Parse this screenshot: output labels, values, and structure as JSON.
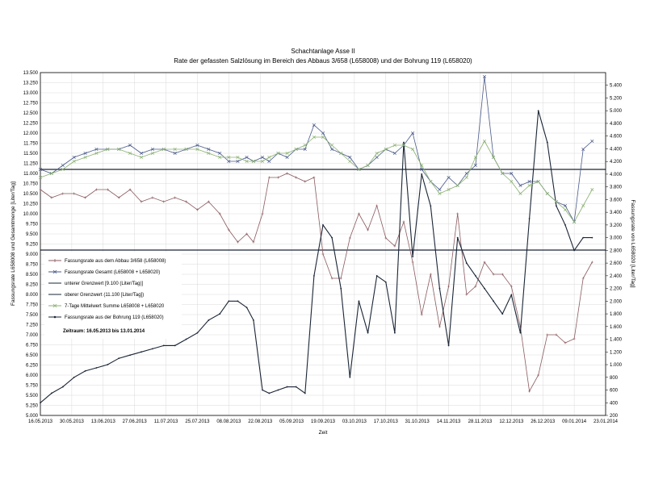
{
  "chart_data": {
    "type": "line",
    "title": "Schachtanlage Asse II",
    "subtitle": "Rate der gefassten Salzlösung im Bereich des Abbaus 3/658 (L658008) und der Bohrung 119 (L658020)",
    "xlabel": "Zeit",
    "ylabel_left": "Fassungsrate L658008 und Gesamtmenge  [Liter/Tag]",
    "ylabel_right": "Fassungsrate von L658020  [Liter/Tag]",
    "ylim_left": [
      5.0,
      13.5
    ],
    "ylim_right": [
      200,
      5600
    ],
    "xlim": [
      "16.05.2013",
      "23.01.2014"
    ],
    "left_ticks": [
      "5.000",
      "5.250",
      "5.500",
      "5.750",
      "6.000",
      "6.250",
      "6.500",
      "6.750",
      "7.000",
      "7.250",
      "7.500",
      "7.750",
      "8.000",
      "8.250",
      "8.500",
      "8.750",
      "9.000",
      "9.250",
      "9.500",
      "9.750",
      "10.000",
      "10.250",
      "10.500",
      "10.750",
      "11.000",
      "11.250",
      "11.500",
      "11.750",
      "12.000",
      "12.250",
      "12.500",
      "12.750",
      "13.000",
      "13.250",
      "13.500"
    ],
    "right_ticks": [
      "200",
      "400",
      "600",
      "800",
      "1.000",
      "1.200",
      "1.400",
      "1.600",
      "1.800",
      "2.000",
      "2.200",
      "2.400",
      "2.600",
      "2.800",
      "3.000",
      "3.200",
      "3.400",
      "3.600",
      "3.800",
      "4.000",
      "4.200",
      "4.400",
      "4.600",
      "4.800",
      "5.000",
      "5.200",
      "5.400"
    ],
    "x_ticks": [
      "16.05.2013",
      "30.05.2013",
      "13.06.2013",
      "27.06.2013",
      "11.07.2013",
      "25.07.2013",
      "08.08.2013",
      "22.08.2013",
      "05.09.2013",
      "19.09.2013",
      "03.10.2013",
      "17.10.2013",
      "31.10.2013",
      "14.11.2013",
      "28.11.2013",
      "12.12.2013",
      "26.12.2013",
      "09.01.2014",
      "23.01.2014"
    ],
    "x_tick_days": [
      0,
      14,
      28,
      42,
      56,
      70,
      84,
      98,
      112,
      126,
      140,
      154,
      168,
      182,
      196,
      210,
      224,
      238,
      252
    ],
    "grid": true,
    "legend_position": "bottom-left",
    "period_text": "Zeitraum: 16.05.2013 bis  13.01.2014",
    "thresholds": [
      {
        "name": "unterer Grenzwert [9.100 (Liter/Tag)]",
        "value": 9.1
      },
      {
        "name": "oberer Grenzwert (11.100 [Liter/Tag])",
        "value": 11.1
      }
    ],
    "series": [
      {
        "name": "Fassungsrate aus dem Abbau 3/658 (L658008)",
        "axis": "left",
        "color": "#8b5a5f",
        "marker": "plus",
        "points": [
          [
            0,
            10.6
          ],
          [
            5,
            10.4
          ],
          [
            10,
            10.5
          ],
          [
            15,
            10.5
          ],
          [
            20,
            10.4
          ],
          [
            25,
            10.6
          ],
          [
            30,
            10.6
          ],
          [
            35,
            10.4
          ],
          [
            40,
            10.6
          ],
          [
            45,
            10.3
          ],
          [
            50,
            10.4
          ],
          [
            55,
            10.3
          ],
          [
            60,
            10.4
          ],
          [
            65,
            10.3
          ],
          [
            70,
            10.1
          ],
          [
            75,
            10.3
          ],
          [
            80,
            10.0
          ],
          [
            84,
            9.6
          ],
          [
            88,
            9.3
          ],
          [
            92,
            9.5
          ],
          [
            95,
            9.3
          ],
          [
            99,
            10.0
          ],
          [
            102,
            10.9
          ],
          [
            106,
            10.9
          ],
          [
            110,
            11.0
          ],
          [
            114,
            10.9
          ],
          [
            118,
            10.8
          ],
          [
            122,
            10.9
          ],
          [
            126,
            9.0
          ],
          [
            130,
            8.4
          ],
          [
            134,
            8.4
          ],
          [
            138,
            9.4
          ],
          [
            142,
            10.0
          ],
          [
            146,
            9.6
          ],
          [
            150,
            10.2
          ],
          [
            154,
            9.4
          ],
          [
            158,
            9.2
          ],
          [
            162,
            9.8
          ],
          [
            166,
            8.8
          ],
          [
            170,
            7.5
          ],
          [
            174,
            8.5
          ],
          [
            178,
            7.2
          ],
          [
            182,
            8.2
          ],
          [
            186,
            10.0
          ],
          [
            190,
            8.0
          ],
          [
            194,
            8.2
          ],
          [
            198,
            8.8
          ],
          [
            202,
            8.5
          ],
          [
            206,
            8.5
          ],
          [
            210,
            8.2
          ],
          [
            214,
            7.2
          ],
          [
            218,
            5.6
          ],
          [
            222,
            6.0
          ],
          [
            226,
            7.0
          ],
          [
            230,
            7.0
          ],
          [
            234,
            6.8
          ],
          [
            238,
            6.9
          ],
          [
            242,
            8.4
          ],
          [
            246,
            8.8
          ]
        ]
      },
      {
        "name": "Fassungsrate Gesamt (L658008 + L658020)",
        "axis": "left",
        "color": "#4a5a8a",
        "marker": "x",
        "points": [
          [
            0,
            11.1
          ],
          [
            5,
            11.0
          ],
          [
            10,
            11.2
          ],
          [
            15,
            11.4
          ],
          [
            20,
            11.5
          ],
          [
            25,
            11.6
          ],
          [
            30,
            11.6
          ],
          [
            35,
            11.6
          ],
          [
            40,
            11.7
          ],
          [
            45,
            11.5
          ],
          [
            50,
            11.6
          ],
          [
            55,
            11.6
          ],
          [
            60,
            11.5
          ],
          [
            65,
            11.6
          ],
          [
            70,
            11.7
          ],
          [
            75,
            11.6
          ],
          [
            80,
            11.5
          ],
          [
            84,
            11.3
          ],
          [
            88,
            11.3
          ],
          [
            92,
            11.4
          ],
          [
            95,
            11.3
          ],
          [
            99,
            11.4
          ],
          [
            102,
            11.3
          ],
          [
            106,
            11.5
          ],
          [
            110,
            11.4
          ],
          [
            114,
            11.6
          ],
          [
            118,
            11.6
          ],
          [
            122,
            12.2
          ],
          [
            126,
            12.0
          ],
          [
            130,
            11.6
          ],
          [
            134,
            11.5
          ],
          [
            138,
            11.4
          ],
          [
            142,
            11.1
          ],
          [
            146,
            11.2
          ],
          [
            150,
            11.4
          ],
          [
            154,
            11.6
          ],
          [
            158,
            11.5
          ],
          [
            162,
            11.7
          ],
          [
            166,
            12.0
          ],
          [
            170,
            11.1
          ],
          [
            174,
            10.8
          ],
          [
            178,
            10.6
          ],
          [
            182,
            10.9
          ],
          [
            186,
            10.7
          ],
          [
            190,
            11.0
          ],
          [
            194,
            11.2
          ],
          [
            198,
            13.4
          ],
          [
            202,
            11.4
          ],
          [
            206,
            11.0
          ],
          [
            210,
            11.0
          ],
          [
            214,
            10.7
          ],
          [
            218,
            10.8
          ],
          [
            222,
            10.8
          ],
          [
            226,
            10.5
          ],
          [
            230,
            10.3
          ],
          [
            234,
            10.2
          ],
          [
            238,
            9.8
          ],
          [
            242,
            11.6
          ],
          [
            246,
            11.8
          ]
        ]
      },
      {
        "name": "7-Tage Mittelwert Summe L658008 + L658020",
        "axis": "left",
        "color": "#8ab070",
        "marker": "x",
        "points": [
          [
            0,
            10.9
          ],
          [
            5,
            11.0
          ],
          [
            10,
            11.1
          ],
          [
            15,
            11.3
          ],
          [
            20,
            11.4
          ],
          [
            25,
            11.5
          ],
          [
            30,
            11.6
          ],
          [
            35,
            11.6
          ],
          [
            40,
            11.5
          ],
          [
            45,
            11.4
          ],
          [
            50,
            11.5
          ],
          [
            55,
            11.6
          ],
          [
            60,
            11.6
          ],
          [
            65,
            11.6
          ],
          [
            70,
            11.6
          ],
          [
            75,
            11.5
          ],
          [
            80,
            11.4
          ],
          [
            84,
            11.4
          ],
          [
            88,
            11.4
          ],
          [
            92,
            11.3
          ],
          [
            95,
            11.3
          ],
          [
            99,
            11.3
          ],
          [
            102,
            11.4
          ],
          [
            106,
            11.5
          ],
          [
            110,
            11.5
          ],
          [
            114,
            11.6
          ],
          [
            118,
            11.7
          ],
          [
            122,
            11.9
          ],
          [
            126,
            11.9
          ],
          [
            130,
            11.7
          ],
          [
            134,
            11.5
          ],
          [
            138,
            11.3
          ],
          [
            142,
            11.1
          ],
          [
            146,
            11.2
          ],
          [
            150,
            11.5
          ],
          [
            154,
            11.6
          ],
          [
            158,
            11.7
          ],
          [
            162,
            11.7
          ],
          [
            166,
            11.6
          ],
          [
            170,
            11.2
          ],
          [
            174,
            10.8
          ],
          [
            178,
            10.5
          ],
          [
            182,
            10.6
          ],
          [
            186,
            10.7
          ],
          [
            190,
            10.9
          ],
          [
            194,
            11.4
          ],
          [
            198,
            11.8
          ],
          [
            202,
            11.4
          ],
          [
            206,
            11.0
          ],
          [
            210,
            10.8
          ],
          [
            214,
            10.5
          ],
          [
            218,
            10.7
          ],
          [
            222,
            10.8
          ],
          [
            226,
            10.5
          ],
          [
            230,
            10.3
          ],
          [
            234,
            10.1
          ],
          [
            238,
            9.8
          ],
          [
            242,
            10.2
          ],
          [
            246,
            10.6
          ]
        ]
      },
      {
        "name": "Fassungsrate aus der Bohrung 119 (L658020)",
        "axis": "right",
        "color": "#1a2535",
        "marker": "dot",
        "points": [
          [
            0,
            400
          ],
          [
            5,
            550
          ],
          [
            10,
            650
          ],
          [
            15,
            800
          ],
          [
            20,
            900
          ],
          [
            25,
            950
          ],
          [
            30,
            1000
          ],
          [
            35,
            1100
          ],
          [
            40,
            1150
          ],
          [
            45,
            1200
          ],
          [
            50,
            1250
          ],
          [
            55,
            1300
          ],
          [
            60,
            1300
          ],
          [
            65,
            1400
          ],
          [
            70,
            1500
          ],
          [
            75,
            1700
          ],
          [
            80,
            1800
          ],
          [
            84,
            2000
          ],
          [
            88,
            2000
          ],
          [
            92,
            1900
          ],
          [
            95,
            1700
          ],
          [
            99,
            600
          ],
          [
            102,
            550
          ],
          [
            106,
            600
          ],
          [
            110,
            650
          ],
          [
            114,
            650
          ],
          [
            118,
            550
          ],
          [
            122,
            2400
          ],
          [
            126,
            3200
          ],
          [
            130,
            3000
          ],
          [
            134,
            2200
          ],
          [
            138,
            800
          ],
          [
            142,
            2000
          ],
          [
            146,
            1500
          ],
          [
            150,
            2400
          ],
          [
            154,
            2300
          ],
          [
            158,
            1500
          ],
          [
            162,
            4500
          ],
          [
            166,
            2700
          ],
          [
            170,
            4000
          ],
          [
            174,
            3500
          ],
          [
            178,
            2200
          ],
          [
            182,
            1300
          ],
          [
            186,
            3000
          ],
          [
            190,
            2600
          ],
          [
            194,
            2400
          ],
          [
            198,
            2200
          ],
          [
            202,
            2000
          ],
          [
            206,
            1800
          ],
          [
            210,
            2100
          ],
          [
            214,
            1500
          ],
          [
            218,
            3300
          ],
          [
            222,
            5000
          ],
          [
            226,
            4500
          ],
          [
            230,
            3500
          ],
          [
            234,
            3200
          ],
          [
            238,
            2800
          ],
          [
            242,
            3000
          ],
          [
            246,
            3000
          ]
        ]
      }
    ]
  }
}
